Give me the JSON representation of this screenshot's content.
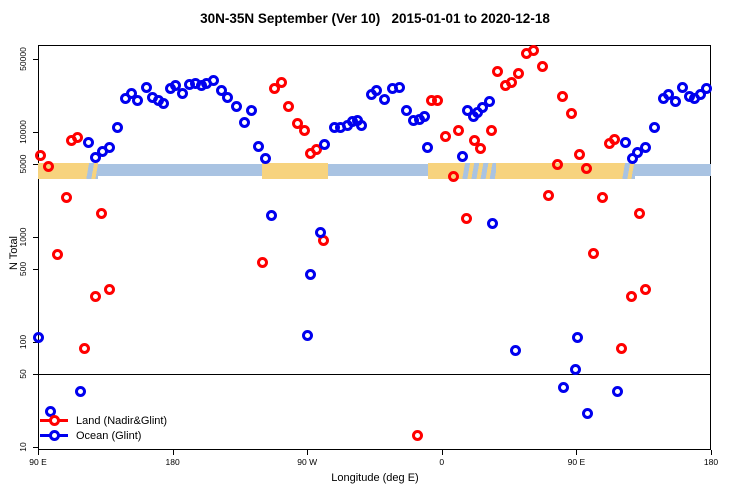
{
  "chart": {
    "title": "30N-35N September (Ver 10)   2015-01-01 to 2020-12-18",
    "x_axis_title": "Longitude (deg E)",
    "y_axis_title": "N Total"
  },
  "legend": {
    "items": [
      {
        "label": "Land (Nadir&Glint)",
        "color": "#ff0000"
      },
      {
        "label": "Ocean (Glint)",
        "color": "#0000ee"
      }
    ]
  },
  "chart_data": {
    "type": "scatter",
    "title": "30N-35N September (Ver 10)   2015-01-01 to 2020-12-18",
    "xlabel": "Longitude (deg E)",
    "ylabel": "N Total",
    "y_scale": "log",
    "ylim": [
      10,
      60000
    ],
    "x_axis": {
      "description": "longitude axis starts at 90E and increases eastward for 450 degrees, wrapping past 180 and 0 back to 180",
      "span_deg": 450,
      "ticks": [
        {
          "label": "90 E",
          "deg": 0
        },
        {
          "label": "180",
          "deg": 90
        },
        {
          "label": "90 W",
          "deg": 180
        },
        {
          "label": "0",
          "deg": 270
        },
        {
          "label": "90 E",
          "deg": 360
        },
        {
          "label": "180",
          "deg": 450
        }
      ]
    },
    "y_axis": {
      "ticks": [
        10,
        50,
        100,
        500,
        1000,
        5000,
        10000,
        50000
      ],
      "tick_labels": [
        "10",
        "50",
        "100",
        "500",
        "1000",
        "5000",
        "10000",
        "50000"
      ]
    },
    "reference_line_n": 50,
    "land_ocean_band": {
      "n_center": 4800,
      "ocean_color": "#a9c3e2",
      "land_color": "#f7d37e",
      "segments": [
        {
          "type": "land",
          "from_deg": 0,
          "to_deg": 31.5
        },
        {
          "type": "mixed",
          "from_deg": 31.5,
          "to_deg": 40
        },
        {
          "type": "ocean",
          "from_deg": 40,
          "to_deg": 149.5
        },
        {
          "type": "land",
          "from_deg": 149.5,
          "to_deg": 194
        },
        {
          "type": "ocean",
          "from_deg": 194,
          "to_deg": 260.5
        },
        {
          "type": "land",
          "from_deg": 260.5,
          "to_deg": 283
        },
        {
          "type": "mixed",
          "from_deg": 283,
          "to_deg": 306
        },
        {
          "type": "land",
          "from_deg": 306,
          "to_deg": 390
        },
        {
          "type": "mixed",
          "from_deg": 390,
          "to_deg": 399
        },
        {
          "type": "ocean",
          "from_deg": 399,
          "to_deg": 450
        }
      ]
    },
    "series": [
      {
        "name": "Land (Nadir&Glint)",
        "color": "#ff0000",
        "points": [
          [
            1.8,
            6000
          ],
          [
            6.9,
            4700
          ],
          [
            13.0,
            690
          ],
          [
            19.2,
            2400
          ],
          [
            22.7,
            8400
          ],
          [
            26.7,
            9000
          ],
          [
            31.4,
            86
          ],
          [
            38.6,
            270
          ],
          [
            42.6,
            1700
          ],
          [
            47.7,
            320
          ],
          [
            150.0,
            580
          ],
          [
            158.0,
            26000
          ],
          [
            162.5,
            30000
          ],
          [
            167.4,
            17500
          ],
          [
            173.6,
            12200
          ],
          [
            178.5,
            10400
          ],
          [
            182.5,
            6300
          ],
          [
            186.4,
            6800
          ],
          [
            190.8,
            930
          ],
          [
            253.6,
            13
          ],
          [
            263.2,
            20000
          ],
          [
            267.0,
            20300
          ],
          [
            272.6,
            9100
          ],
          [
            277.7,
            3800
          ],
          [
            281.5,
            10400
          ],
          [
            286.6,
            1500
          ],
          [
            291.7,
            8300
          ],
          [
            296.2,
            7000
          ],
          [
            302.9,
            10400
          ],
          [
            307.4,
            38000
          ],
          [
            312.3,
            28000
          ],
          [
            316.3,
            30000
          ],
          [
            321.6,
            36000
          ],
          [
            326.8,
            56000
          ],
          [
            331.6,
            60000
          ],
          [
            337.2,
            42000
          ],
          [
            341.3,
            2500
          ],
          [
            347.5,
            4900
          ],
          [
            350.5,
            22000
          ],
          [
            356.8,
            15000
          ],
          [
            361.9,
            6100
          ],
          [
            366.8,
            4500
          ],
          [
            371.6,
            700
          ],
          [
            377.6,
            2400
          ],
          [
            381.9,
            7900
          ],
          [
            385.8,
            8500
          ],
          [
            390.3,
            86
          ],
          [
            396.9,
            270
          ],
          [
            402.0,
            1700
          ],
          [
            406.5,
            320
          ]
        ]
      },
      {
        "name": "Ocean (Glint)",
        "color": "#0000ee",
        "points": [
          [
            0,
            110
          ],
          [
            8.5,
            22
          ],
          [
            28.6,
            34
          ],
          [
            33.6,
            8000
          ],
          [
            38.3,
            5800
          ],
          [
            42.8,
            6500
          ],
          [
            47.5,
            7200
          ],
          [
            53.0,
            11200
          ],
          [
            58.6,
            21000
          ],
          [
            62.6,
            23500
          ],
          [
            66.7,
            20000
          ],
          [
            72.7,
            27000
          ],
          [
            76.7,
            21500
          ],
          [
            80.4,
            20300
          ],
          [
            83.6,
            19000
          ],
          [
            88.3,
            26000
          ],
          [
            92.1,
            28000
          ],
          [
            96.7,
            23500
          ],
          [
            101.2,
            28300
          ],
          [
            105.0,
            29000
          ],
          [
            109.0,
            28000
          ],
          [
            113.0,
            29000
          ],
          [
            117.2,
            31000
          ],
          [
            122.8,
            25000
          ],
          [
            126.8,
            21500
          ],
          [
            132.8,
            17500
          ],
          [
            137.9,
            12500
          ],
          [
            142.9,
            16000
          ],
          [
            147.3,
            7400
          ],
          [
            151.8,
            5600
          ],
          [
            156.2,
            1600
          ],
          [
            180.3,
            115
          ],
          [
            181.9,
            440
          ],
          [
            188.6,
            1100
          ],
          [
            191.4,
            7700
          ],
          [
            198.1,
            11000
          ],
          [
            202.6,
            11200
          ],
          [
            207.1,
            11500
          ],
          [
            210.2,
            12600
          ],
          [
            213.8,
            13000
          ],
          [
            216.4,
            11700
          ],
          [
            222.7,
            23000
          ],
          [
            226.5,
            25000
          ],
          [
            232.0,
            20500
          ],
          [
            236.9,
            26000
          ],
          [
            241.4,
            27000
          ],
          [
            246.5,
            16000
          ],
          [
            251.0,
            13000
          ],
          [
            254.8,
            13300
          ],
          [
            258.3,
            14000
          ],
          [
            260.6,
            7200
          ],
          [
            283.7,
            5900
          ],
          [
            287.3,
            16000
          ],
          [
            291.1,
            14000
          ],
          [
            294.0,
            15500
          ],
          [
            297.1,
            17300
          ],
          [
            301.6,
            19500
          ],
          [
            303.8,
            1340
          ],
          [
            319.4,
            84
          ],
          [
            351.7,
            37
          ],
          [
            359.1,
            55
          ],
          [
            360.6,
            110
          ],
          [
            367.3,
            21
          ],
          [
            387.4,
            34
          ],
          [
            392.5,
            8000
          ],
          [
            397.6,
            5600
          ],
          [
            401.0,
            6400
          ],
          [
            405.9,
            7200
          ],
          [
            411.9,
            11200
          ],
          [
            418.1,
            21000
          ],
          [
            421.5,
            23000
          ],
          [
            426.0,
            19500
          ],
          [
            431.1,
            27000
          ],
          [
            435.5,
            22000
          ],
          [
            439.3,
            21000
          ],
          [
            442.7,
            23000
          ],
          [
            446.7,
            26000
          ]
        ]
      }
    ]
  }
}
